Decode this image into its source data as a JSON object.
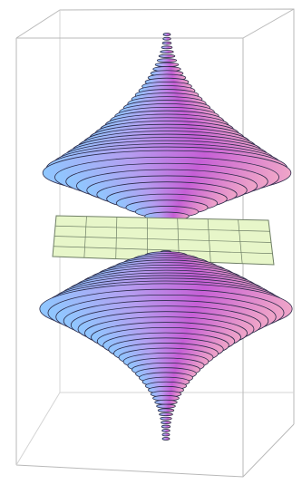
{
  "figure": {
    "kind": "3d-surface-plot",
    "description_free": true,
    "colors": {
      "background": "#ffffff",
      "box_edge": "#b9b9b9",
      "surface_light": "#8fc8ff",
      "surface_mid": "#b59df0",
      "surface_dark": "#c65fd6",
      "surface_warm": "#f0a6c8",
      "contour_line": "#2b2b4a",
      "plane_fill": "#e7f6c9",
      "plane_grid": "#6f7f66"
    },
    "layers": [
      {
        "id": "upper-surface"
      },
      {
        "id": "separator-plane"
      },
      {
        "id": "lower-surface"
      }
    ]
  }
}
